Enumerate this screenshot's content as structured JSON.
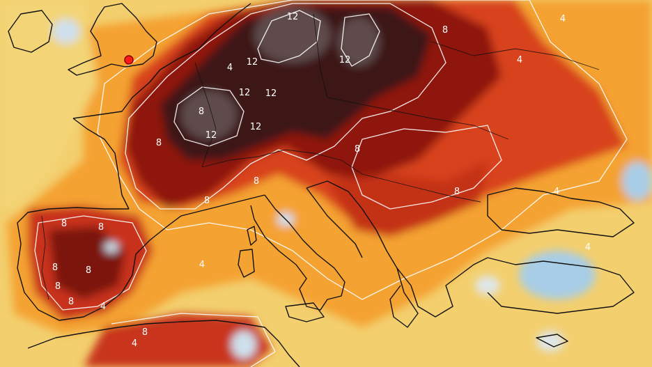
{
  "map": {
    "contour_labels": [
      {
        "text": "12"
      },
      {
        "text": "12"
      },
      {
        "text": "12"
      },
      {
        "text": "12"
      },
      {
        "text": "12"
      },
      {
        "text": "12"
      },
      {
        "text": "12"
      },
      {
        "text": "8"
      },
      {
        "text": "8"
      },
      {
        "text": "8"
      },
      {
        "text": "8"
      },
      {
        "text": "8"
      },
      {
        "text": "8"
      },
      {
        "text": "8"
      },
      {
        "text": "8"
      },
      {
        "text": "8"
      },
      {
        "text": "8"
      },
      {
        "text": "8"
      },
      {
        "text": "8"
      },
      {
        "text": "8"
      },
      {
        "text": "8"
      },
      {
        "text": "4"
      },
      {
        "text": "4"
      },
      {
        "text": "4"
      },
      {
        "text": "4"
      },
      {
        "text": "4"
      },
      {
        "text": "4"
      },
      {
        "text": "4"
      },
      {
        "text": "4"
      }
    ],
    "colors": {
      "sea_pale": "#f3d27a",
      "yellow": "#f4c04a",
      "orange": "#f39a2a",
      "red_orange": "#e0561c",
      "red": "#c22a14",
      "dark_red": "#7a1210",
      "brown_black": "#3a1512",
      "grey_core": "#5a4a4c",
      "cold_blue": "#9cc8e8",
      "white": "#ffffff",
      "marker": "#ff1a1a"
    }
  }
}
